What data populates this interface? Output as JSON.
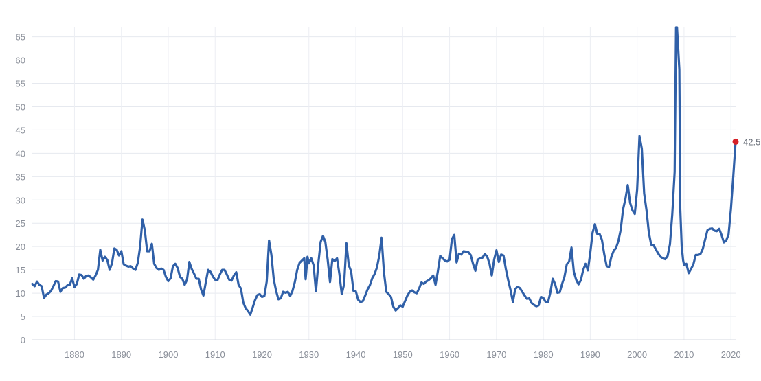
{
  "chart_data": {
    "type": "line",
    "title": "",
    "xlabel": "",
    "ylabel": "",
    "xlim": [
      1871,
      2021
    ],
    "ylim": [
      0,
      67
    ],
    "grid": true,
    "y_ticks": [
      0,
      5,
      10,
      15,
      20,
      25,
      30,
      35,
      40,
      45,
      50,
      55,
      60,
      65
    ],
    "x_ticks": [
      1880,
      1890,
      1900,
      1910,
      1920,
      1930,
      1940,
      1950,
      1960,
      1970,
      1980,
      1990,
      2000,
      2010,
      2020
    ],
    "series": [
      {
        "color": "#3060a8",
        "x": [
          1871,
          1871.5,
          1872,
          1872.5,
          1873,
          1873.5,
          1874,
          1874.5,
          1875,
          1875.5,
          1876,
          1876.5,
          1877,
          1877.5,
          1878,
          1878.5,
          1879,
          1879.5,
          1880,
          1880.5,
          1881,
          1881.5,
          1882,
          1882.5,
          1883,
          1883.5,
          1884,
          1884.5,
          1885,
          1885.5,
          1886,
          1886.5,
          1887,
          1887.5,
          1888,
          1888.5,
          1889,
          1889.5,
          1890,
          1890.5,
          1891,
          1891.5,
          1892,
          1892.5,
          1893,
          1893.5,
          1894,
          1894.5,
          1895,
          1895.5,
          1896,
          1896.5,
          1897,
          1897.5,
          1898,
          1898.5,
          1899,
          1899.5,
          1900,
          1900.5,
          1901,
          1901.5,
          1902,
          1902.5,
          1903,
          1903.5,
          1904,
          1904.5,
          1905,
          1905.5,
          1906,
          1906.5,
          1907,
          1907.5,
          1908,
          1908.5,
          1909,
          1909.5,
          1910,
          1910.5,
          1911,
          1911.5,
          1912,
          1912.5,
          1913,
          1913.5,
          1914,
          1914.5,
          1915,
          1915.5,
          1916,
          1916.5,
          1917,
          1917.5,
          1918,
          1918.5,
          1919,
          1919.5,
          1920,
          1920.5,
          1921,
          1921.5,
          1922,
          1922.5,
          1923,
          1923.5,
          1924,
          1924.5,
          1925,
          1925.5,
          1926,
          1926.5,
          1927,
          1927.5,
          1928,
          1928.5,
          1929,
          1929.3,
          1929.7,
          1930,
          1930.5,
          1931,
          1931.5,
          1932,
          1932.5,
          1933,
          1933.5,
          1934,
          1934.5,
          1935,
          1935.5,
          1936,
          1936.5,
          1937,
          1937.5,
          1938,
          1938.5,
          1939,
          1939.5,
          1940,
          1940.5,
          1941,
          1941.5,
          1942,
          1942.5,
          1943,
          1943.5,
          1944,
          1944.5,
          1945,
          1945.5,
          1946,
          1946.5,
          1947,
          1947.5,
          1948,
          1948.5,
          1949,
          1949.5,
          1950,
          1950.5,
          1951,
          1951.5,
          1952,
          1952.5,
          1953,
          1953.5,
          1954,
          1954.5,
          1955,
          1955.5,
          1956,
          1956.5,
          1957,
          1957.5,
          1958,
          1958.5,
          1959,
          1959.5,
          1960,
          1960.5,
          1961,
          1961.5,
          1962,
          1962.5,
          1963,
          1963.5,
          1964,
          1964.5,
          1965,
          1965.5,
          1966,
          1966.5,
          1967,
          1967.5,
          1968,
          1968.5,
          1969,
          1969.5,
          1970,
          1970.5,
          1971,
          1971.5,
          1972,
          1972.5,
          1973,
          1973.5,
          1974,
          1974.5,
          1975,
          1975.5,
          1976,
          1976.5,
          1977,
          1977.5,
          1978,
          1978.5,
          1979,
          1979.5,
          1980,
          1980.5,
          1981,
          1981.5,
          1982,
          1982.5,
          1983,
          1983.5,
          1984,
          1984.5,
          1985,
          1985.5,
          1986,
          1986.5,
          1987,
          1987.5,
          1988,
          1988.5,
          1989,
          1989.5,
          1990,
          1990.5,
          1991,
          1991.5,
          1992,
          1992.5,
          1993,
          1993.5,
          1994,
          1994.5,
          1995,
          1995.5,
          1996,
          1996.5,
          1997,
          1997.5,
          1998,
          1998.5,
          1999,
          1999.5,
          2000,
          2000.5,
          2001,
          2001.5,
          2002,
          2002.5,
          2003,
          2003.5,
          2004,
          2004.5,
          2005,
          2005.5,
          2006,
          2006.5,
          2007,
          2007.5,
          2008,
          2008.3,
          2008.5,
          2009,
          2009.2,
          2009.5,
          2009.8,
          2010,
          2010.5,
          2011,
          2011.5,
          2012,
          2012.5,
          2013,
          2013.5,
          2014,
          2014.5,
          2015,
          2015.5,
          2016,
          2016.5,
          2017,
          2017.5,
          2018,
          2018.5,
          2019,
          2019.5,
          2020,
          2020.5,
          2021
        ],
        "y": [
          12,
          11.5,
          12.5,
          11.8,
          11.5,
          9,
          9.7,
          10,
          10.5,
          11.5,
          12.6,
          12.5,
          10.3,
          11.1,
          11.2,
          11.7,
          11.8,
          13.2,
          11.3,
          12,
          14,
          13.9,
          13.1,
          13.7,
          13.8,
          13.4,
          12.9,
          13.8,
          15,
          19.3,
          17,
          17.8,
          17.1,
          15,
          16.4,
          19.6,
          19.3,
          18.1,
          19,
          16.2,
          15.9,
          15.7,
          15.8,
          15.3,
          15,
          16.5,
          20,
          25.8,
          23.5,
          19,
          19,
          20.6,
          16.3,
          15.4,
          15,
          15.3,
          15,
          13.5,
          12.6,
          13.2,
          15.8,
          16.3,
          15.4,
          13.5,
          13.1,
          11.8,
          12.9,
          16.7,
          15.2,
          14.2,
          13.1,
          13.1,
          10.8,
          9.5,
          12.3,
          15,
          14.6,
          13.6,
          12.9,
          12.8,
          14,
          15,
          15,
          14,
          12.9,
          12.7,
          13.8,
          14.5,
          11.8,
          11,
          8,
          6.8,
          6.2,
          5.4,
          6.9,
          8.5,
          9.6,
          9.8,
          9.2,
          9.4,
          12.5,
          21.3,
          18.2,
          13,
          10.5,
          8.7,
          8.9,
          10.3,
          10.1,
          10.3,
          9.4,
          10.5,
          12.4,
          15,
          16.5,
          17,
          17.5,
          13,
          17.8,
          16.4,
          17.5,
          16,
          10.4,
          16.3,
          21,
          22.3,
          21,
          17.2,
          12.4,
          17.3,
          16.9,
          17.5,
          14.1,
          9.8,
          11.9,
          20.7,
          16,
          14.7,
          10.5,
          10.4,
          8.6,
          8.1,
          8.3,
          9.5,
          10.8,
          11.7,
          13.2,
          14.1,
          15.5,
          18,
          21.9,
          14.5,
          10.3,
          9.8,
          9.2,
          7.1,
          6.3,
          6.8,
          7.4,
          7.1,
          8.3,
          9.5,
          10.3,
          10.6,
          10.2,
          10,
          11,
          12.3,
          12,
          12.5,
          12.8,
          13.2,
          13.8,
          11.8,
          14.7,
          18,
          17.5,
          17,
          16.8,
          17.2,
          21.6,
          22.5,
          16.6,
          18.5,
          18.3,
          19,
          18.9,
          18.8,
          18.2,
          16.3,
          14.8,
          17.2,
          17.5,
          17.6,
          18.4,
          17.9,
          16.4,
          13.8,
          17.2,
          19.2,
          16.7,
          18.3,
          18.1,
          15.2,
          12.8,
          10.7,
          8.1,
          10.9,
          11.4,
          11.1,
          10.3,
          9.5,
          8.8,
          8.9,
          7.9,
          7.5,
          7.2,
          7.4,
          9.2,
          9,
          8.1,
          8.1,
          10.2,
          13.1,
          12,
          10.1,
          10.2,
          12,
          13.5,
          16.2,
          16.8,
          19.8,
          14.6,
          12.9,
          11.9,
          12.8,
          15,
          16.3,
          14.9,
          18.6,
          23,
          24.8,
          22.7,
          22.7,
          21.4,
          18.3,
          15.8,
          15.6,
          17.8,
          19.1,
          19.7,
          21.2,
          23.6,
          28,
          30.2,
          33.2,
          29.4,
          27.8,
          27,
          32.2,
          43.7,
          41,
          31.4,
          27.8,
          23,
          20.4,
          20.3,
          19.4,
          18.5,
          17.8,
          17.5,
          17.3,
          18,
          20.5,
          27,
          36,
          67,
          67,
          58,
          28,
          20.1,
          17.1,
          16.1,
          16.3,
          14.3,
          15.2,
          16.2,
          18.2,
          18.2,
          18.4,
          19.5,
          21.5,
          23.5,
          23.8,
          23.9,
          23.4,
          23.3,
          23.8,
          22.5,
          20.9,
          21.3,
          22.6,
          28,
          35,
          42.5
        ]
      }
    ],
    "last_point": {
      "x": 2021,
      "y": 42.5,
      "color": "#d61f26"
    },
    "last_label": "42.5"
  }
}
